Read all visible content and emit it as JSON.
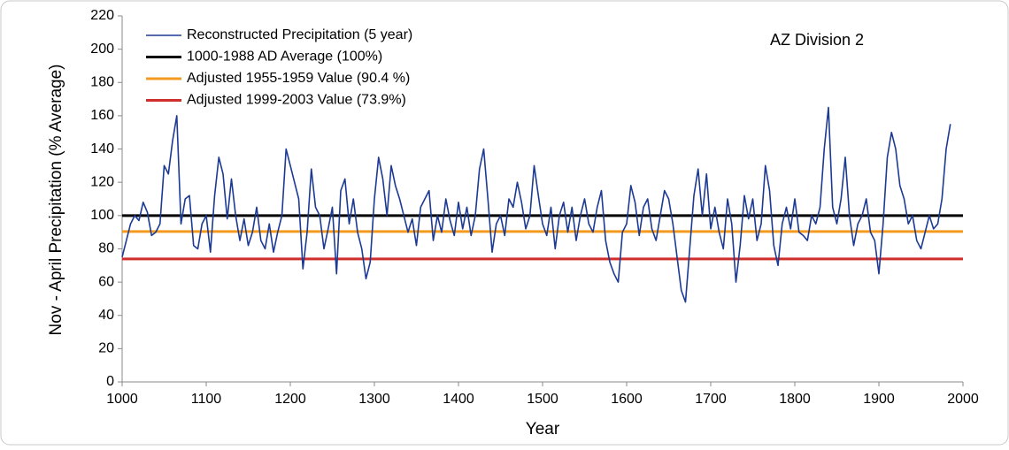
{
  "chart_data": {
    "type": "line",
    "annotation": "AZ Division 2",
    "xlabel": "Year",
    "ylabel": "Nov - April Precipitation (% Average)",
    "xlim": [
      1000,
      2000
    ],
    "xticks": [
      1000,
      1100,
      1200,
      1300,
      1400,
      1500,
      1600,
      1700,
      1800,
      1900,
      2000
    ],
    "ylim": [
      0,
      220
    ],
    "yticks": [
      0,
      20,
      40,
      60,
      80,
      100,
      120,
      140,
      160,
      180,
      200,
      220
    ],
    "legend": "upper left",
    "series": [
      {
        "name": "Reconstructed Precipitation (5 year)",
        "color": "#1c3a94",
        "x": [
          1000,
          1005,
          1010,
          1015,
          1020,
          1025,
          1030,
          1035,
          1040,
          1045,
          1050,
          1055,
          1060,
          1065,
          1070,
          1075,
          1080,
          1085,
          1090,
          1095,
          1100,
          1105,
          1110,
          1115,
          1120,
          1125,
          1130,
          1135,
          1140,
          1145,
          1150,
          1155,
          1160,
          1165,
          1170,
          1175,
          1180,
          1185,
          1190,
          1195,
          1200,
          1205,
          1210,
          1215,
          1220,
          1225,
          1230,
          1235,
          1240,
          1245,
          1250,
          1255,
          1260,
          1265,
          1270,
          1275,
          1280,
          1285,
          1290,
          1295,
          1300,
          1305,
          1310,
          1315,
          1320,
          1325,
          1330,
          1335,
          1340,
          1345,
          1350,
          1355,
          1360,
          1365,
          1370,
          1375,
          1380,
          1385,
          1390,
          1395,
          1400,
          1405,
          1410,
          1415,
          1420,
          1425,
          1430,
          1435,
          1440,
          1445,
          1450,
          1455,
          1460,
          1465,
          1470,
          1475,
          1480,
          1485,
          1490,
          1495,
          1500,
          1505,
          1510,
          1515,
          1520,
          1525,
          1530,
          1535,
          1540,
          1545,
          1550,
          1555,
          1560,
          1565,
          1570,
          1575,
          1580,
          1585,
          1590,
          1595,
          1600,
          1605,
          1610,
          1615,
          1620,
          1625,
          1630,
          1635,
          1640,
          1645,
          1650,
          1655,
          1660,
          1665,
          1670,
          1675,
          1680,
          1685,
          1690,
          1695,
          1700,
          1705,
          1710,
          1715,
          1720,
          1725,
          1730,
          1735,
          1740,
          1745,
          1750,
          1755,
          1760,
          1765,
          1770,
          1775,
          1780,
          1785,
          1790,
          1795,
          1800,
          1805,
          1810,
          1815,
          1820,
          1825,
          1830,
          1835,
          1840,
          1845,
          1850,
          1855,
          1860,
          1865,
          1870,
          1875,
          1880,
          1885,
          1890,
          1895,
          1900,
          1905,
          1910,
          1915,
          1920,
          1925,
          1930,
          1935,
          1940,
          1945,
          1950,
          1955,
          1960,
          1965,
          1970,
          1975,
          1980,
          1985
        ],
        "values": [
          75,
          85,
          95,
          100,
          97,
          108,
          102,
          88,
          90,
          95,
          130,
          125,
          145,
          160,
          95,
          110,
          112,
          82,
          80,
          95,
          100,
          78,
          112,
          135,
          125,
          98,
          122,
          100,
          85,
          98,
          82,
          90,
          105,
          85,
          80,
          95,
          78,
          90,
          100,
          140,
          130,
          120,
          110,
          68,
          90,
          128,
          105,
          100,
          80,
          92,
          105,
          65,
          115,
          122,
          95,
          110,
          90,
          80,
          62,
          72,
          110,
          135,
          122,
          100,
          130,
          118,
          110,
          100,
          90,
          98,
          82,
          105,
          110,
          115,
          85,
          100,
          90,
          110,
          97,
          88,
          108,
          92,
          105,
          88,
          100,
          128,
          140,
          110,
          78,
          95,
          100,
          88,
          110,
          105,
          120,
          108,
          92,
          100,
          130,
          112,
          95,
          88,
          105,
          80,
          100,
          108,
          90,
          105,
          85,
          100,
          110,
          95,
          90,
          105,
          115,
          85,
          72,
          65,
          60,
          90,
          95,
          118,
          108,
          88,
          105,
          110,
          92,
          85,
          100,
          115,
          110,
          95,
          75,
          55,
          48,
          80,
          112,
          128,
          100,
          125,
          92,
          105,
          90,
          80,
          110,
          95,
          60,
          82,
          112,
          98,
          110,
          85,
          95,
          130,
          115,
          82,
          70,
          95,
          105,
          92,
          110,
          90,
          88,
          85,
          100,
          95,
          105,
          140,
          165,
          105,
          95,
          110,
          135,
          100,
          82,
          95,
          100,
          110,
          90,
          85,
          65,
          95,
          135,
          150,
          140,
          118,
          110,
          95,
          100,
          85,
          80,
          90,
          100,
          92,
          95,
          110,
          140,
          155
        ]
      },
      {
        "name": "1000-1988 AD Average (100%)",
        "color": "#000000",
        "x": [
          1000,
          2000
        ],
        "values": [
          100,
          100
        ]
      },
      {
        "name": "Adjusted 1955-1959 Value (90.4 %)",
        "color": "#f39a1f",
        "x": [
          1000,
          2000
        ],
        "values": [
          90.4,
          90.4
        ]
      },
      {
        "name": "Adjusted 1999-2003 Value (73.9%)",
        "color": "#cf2e2a",
        "x": [
          1000,
          2000
        ],
        "values": [
          73.9,
          73.9
        ]
      }
    ]
  }
}
